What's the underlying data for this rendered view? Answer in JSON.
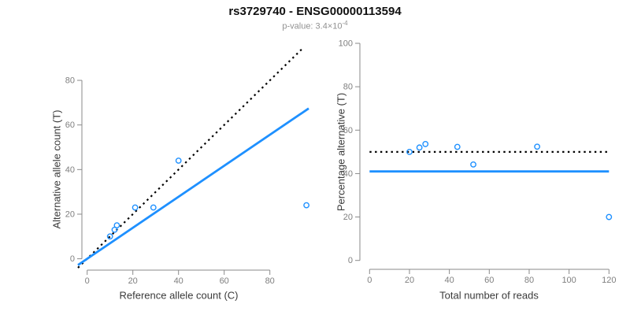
{
  "header": {
    "title": "rs3729740 - ENSG00000113594",
    "subtitle_prefix": "p-value: 3.4×10",
    "subtitle_exponent": "-4"
  },
  "colors": {
    "point_blue": "#1E90FF",
    "fit_line_blue": "#1E90FF",
    "reference_line_black": "#000000",
    "axis_gray": "#8a8a8a",
    "tick_label_gray": "#7f7f7f",
    "axis_title_gray": "#3a3a3a",
    "title_black": "#111111",
    "subtitle_gray": "#919191"
  },
  "chart_data": [
    {
      "type": "scatter",
      "panel": "left",
      "xlabel": "Reference allele count (C)",
      "ylabel": "Alternative allele count (T)",
      "xticks": [
        0,
        20,
        40,
        60,
        80
      ],
      "yticks": [
        0,
        20,
        40,
        60,
        80
      ],
      "xlim": [
        0,
        97
      ],
      "ylim": [
        0,
        95
      ],
      "grid": false,
      "point_style": "open-circle",
      "points": [
        [
          10,
          10
        ],
        [
          12,
          13
        ],
        [
          13,
          15
        ],
        [
          21,
          23
        ],
        [
          29,
          23
        ],
        [
          40,
          44
        ],
        [
          96,
          24
        ]
      ],
      "lines": [
        {
          "name": "identity-line",
          "style": "dotted",
          "color": "#000000",
          "kind": "slope",
          "slope": 1,
          "intercept": 0
        },
        {
          "name": "fit-line",
          "style": "solid",
          "color": "#1E90FF",
          "kind": "slope",
          "slope": 0.695,
          "intercept": 0
        }
      ]
    },
    {
      "type": "scatter",
      "panel": "right",
      "xlabel": "Total number of reads",
      "ylabel": "Percentage alternative (T)",
      "xticks": [
        0,
        20,
        40,
        60,
        80,
        100,
        120
      ],
      "yticks": [
        0,
        20,
        40,
        60,
        80,
        100
      ],
      "xlim": [
        0,
        122
      ],
      "ylim": [
        0,
        102
      ],
      "grid": false,
      "point_style": "open-circle",
      "points": [
        [
          20,
          50
        ],
        [
          25,
          52
        ],
        [
          28,
          53.6
        ],
        [
          44,
          52.3
        ],
        [
          52,
          44.2
        ],
        [
          84,
          52.4
        ],
        [
          120,
          20
        ]
      ],
      "lines": [
        {
          "name": "null-50pct-line",
          "style": "dotted",
          "color": "#000000",
          "kind": "h",
          "y": 50
        },
        {
          "name": "estimate-41pct-line",
          "style": "solid",
          "color": "#1E90FF",
          "kind": "h",
          "y": 41
        }
      ]
    }
  ]
}
